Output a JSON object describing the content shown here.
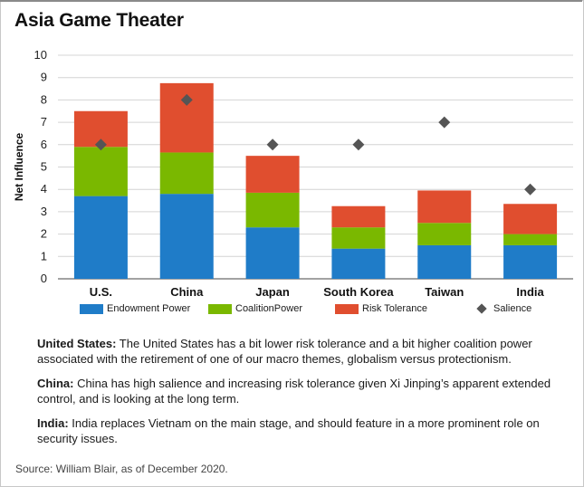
{
  "title": "Asia Game Theater",
  "chart_data": {
    "type": "bar",
    "stacked": true,
    "categories": [
      "U.S.",
      "China",
      "Japan",
      "South Korea",
      "Taiwan",
      "India"
    ],
    "series": [
      {
        "name": "Endowment Power",
        "color": "#1f7cc8",
        "values": [
          3.7,
          3.8,
          2.3,
          1.35,
          1.5,
          1.5
        ]
      },
      {
        "name": "CoalitionPower",
        "color": "#7ab800",
        "values": [
          2.2,
          1.85,
          1.55,
          0.95,
          1.0,
          0.5
        ]
      },
      {
        "name": "Risk Tolerance",
        "color": "#e04e2f",
        "values": [
          1.6,
          3.1,
          1.65,
          0.95,
          1.45,
          1.35
        ]
      }
    ],
    "markers": {
      "name": "Salience",
      "color": "#555555",
      "values": [
        6,
        8,
        6,
        6,
        7,
        4
      ]
    },
    "ylabel": "Net Influence",
    "ylim": [
      0,
      10
    ],
    "yticks": [
      0,
      1,
      2,
      3,
      4,
      5,
      6,
      7,
      8,
      9,
      10
    ],
    "grid": true,
    "legend_position": "bottom"
  },
  "notes": [
    {
      "label": "United States:",
      "text": " The United States has a bit lower risk tolerance and a bit higher coalition power associated with the retirement of one of our macro themes, globalism versus protectionism."
    },
    {
      "label": "China:",
      "text": " China has high salience and increasing risk tolerance given Xi Jinping’s apparent extended control, and is looking at the long term."
    },
    {
      "label": "India:",
      "text": " India replaces Vietnam on the main stage, and should feature in a more prominent role on security issues."
    }
  ],
  "source": "Source: William Blair, as of December 2020."
}
